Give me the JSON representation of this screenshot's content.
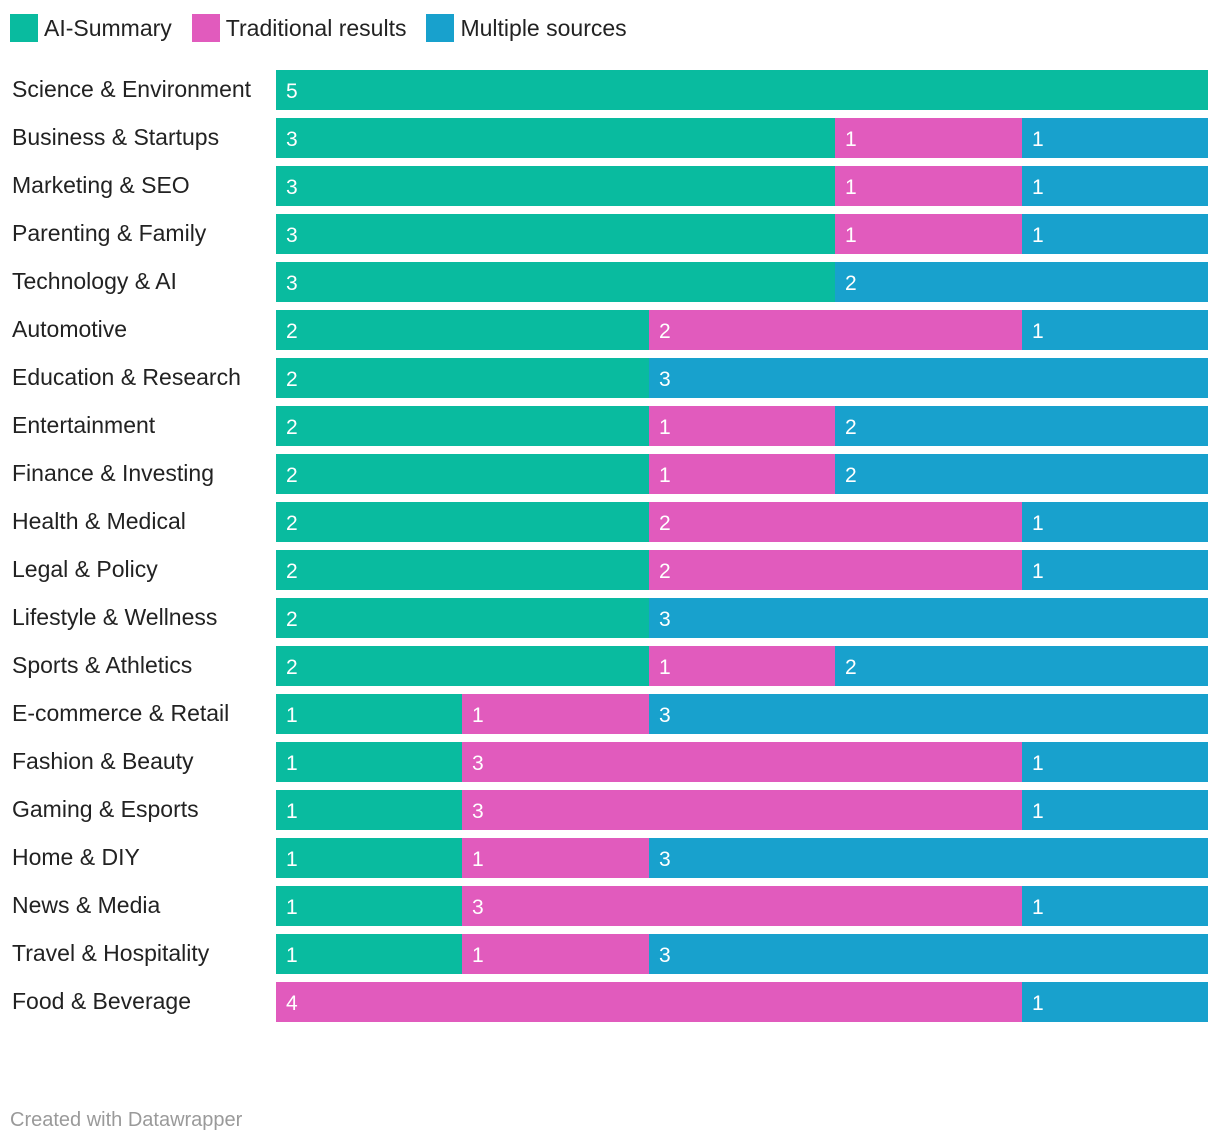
{
  "chart_data": {
    "type": "bar",
    "orientation": "horizontal",
    "stacked": true,
    "title": "",
    "xlabel": "",
    "ylabel": "",
    "xlim": [
      0,
      5
    ],
    "grid": false,
    "legend_position": "top-left",
    "categories": [
      "Science & Environment",
      "Business & Startups",
      "Marketing & SEO",
      "Parenting & Family",
      "Technology & AI",
      "Automotive",
      "Education & Research",
      "Entertainment",
      "Finance & Investing",
      "Health & Medical",
      "Legal & Policy",
      "Lifestyle & Wellness",
      "Sports & Athletics",
      "E-commerce & Retail",
      "Fashion & Beauty",
      "Gaming & Esports",
      "Home & DIY",
      "News & Media",
      "Travel & Hospitality",
      "Food & Beverage"
    ],
    "series": [
      {
        "name": "AI-Summary",
        "color": "#09bb9f",
        "values": [
          5,
          3,
          3,
          3,
          3,
          2,
          2,
          2,
          2,
          2,
          2,
          2,
          2,
          1,
          1,
          1,
          1,
          1,
          1,
          0
        ]
      },
      {
        "name": "Traditional results",
        "color": "#e15bbd",
        "values": [
          0,
          1,
          1,
          1,
          0,
          2,
          0,
          1,
          1,
          2,
          2,
          0,
          1,
          1,
          3,
          3,
          1,
          3,
          1,
          4
        ]
      },
      {
        "name": "Multiple sources",
        "color": "#18a1cd",
        "values": [
          0,
          1,
          1,
          1,
          2,
          1,
          3,
          2,
          2,
          1,
          1,
          3,
          2,
          3,
          1,
          1,
          3,
          1,
          3,
          1
        ]
      }
    ]
  },
  "footer": {
    "credit": "Created with Datawrapper"
  }
}
